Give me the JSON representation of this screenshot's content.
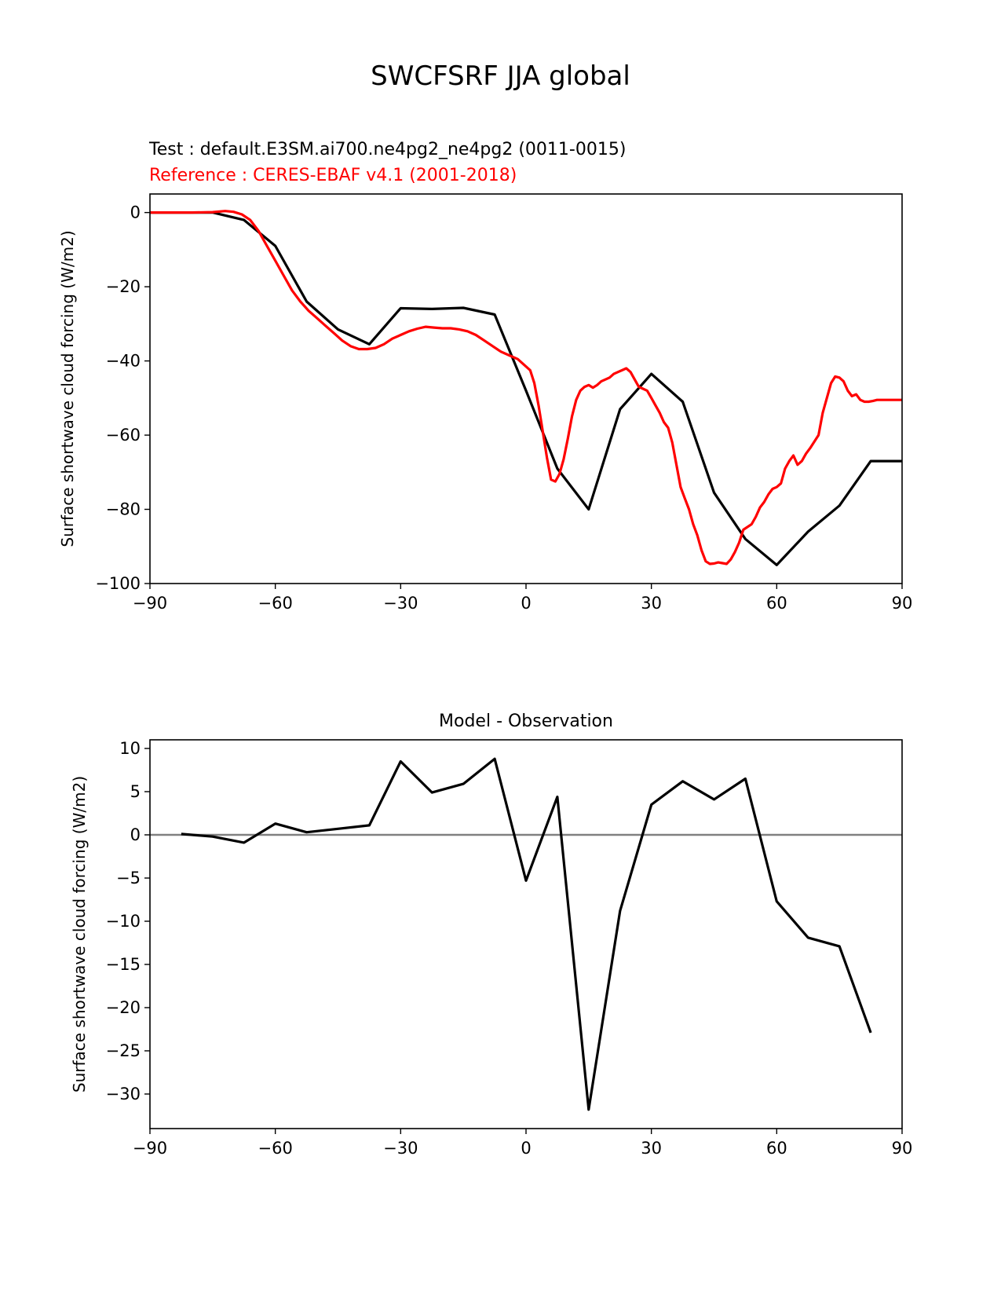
{
  "figure": {
    "title": "SWCFSRF JJA global"
  },
  "chart_data": [
    {
      "type": "line",
      "test_label": "Test : default.E3SM.ai700.ne4pg2_ne4pg2 (0011-0015)",
      "reference_label": "Reference : CERES-EBAF v4.1 (2001-2018)",
      "xlabel": "",
      "ylabel": "Surface shortwave cloud forcing (W/m2)",
      "xlim": [
        -90,
        90
      ],
      "ylim": [
        -100,
        5
      ],
      "xticks": [
        -90,
        -60,
        -30,
        0,
        30,
        60,
        90
      ],
      "yticks": [
        0,
        -20,
        -40,
        -60,
        -80,
        -100
      ],
      "xtick_labels": [
        "−90",
        "−60",
        "−30",
        "0",
        "30",
        "60",
        "90"
      ],
      "ytick_labels": [
        "0",
        "−20",
        "−40",
        "−60",
        "−80",
        "−100"
      ],
      "grid": false,
      "series": [
        {
          "key": "test",
          "color": "#000000",
          "x": [
            -90,
            -82.5,
            -75,
            -67.5,
            -60,
            -52.5,
            -45,
            -37.5,
            -30,
            -22.5,
            -15,
            -7.5,
            0,
            7.5,
            15,
            22.5,
            30,
            37.5,
            45,
            52.5,
            60,
            67.5,
            75,
            82.5,
            90
          ],
          "y": [
            0,
            0,
            0,
            -2,
            -9,
            -24,
            -31.5,
            -35.5,
            -25.8,
            -26,
            -25.7,
            -27.5,
            -48,
            -69,
            -80,
            -53,
            -43.5,
            -51,
            -75.5,
            -88,
            -95,
            -86,
            -79,
            -67,
            -67
          ]
        },
        {
          "key": "reference",
          "color": "#ff0000",
          "x": [
            -90,
            -80,
            -75,
            -72,
            -70,
            -68,
            -66,
            -64,
            -62,
            -60,
            -58,
            -56,
            -54,
            -52,
            -50,
            -48,
            -46,
            -44,
            -42,
            -40,
            -38,
            -36,
            -34,
            -32,
            -30,
            -28,
            -26,
            -24,
            -22,
            -20,
            -18,
            -16,
            -14,
            -12,
            -10,
            -8,
            -6,
            -4,
            -2,
            0,
            1,
            2,
            3,
            4,
            5,
            6,
            7,
            8,
            9,
            10,
            11,
            12,
            13,
            14,
            15,
            16,
            17,
            18,
            19,
            20,
            21,
            22,
            23,
            24,
            25,
            26,
            27,
            28,
            29,
            30,
            31,
            32,
            33,
            34,
            35,
            36,
            37,
            38,
            39,
            40,
            41,
            42,
            43,
            44,
            45,
            46,
            47,
            48,
            49,
            50,
            51,
            52,
            54,
            55,
            56,
            57,
            58,
            59,
            60,
            61,
            62,
            63,
            64,
            65,
            66,
            67,
            68,
            70,
            71,
            72,
            73,
            74,
            75,
            76,
            77,
            78,
            79,
            80,
            81,
            82,
            83,
            84,
            85,
            86,
            87,
            88,
            89,
            90
          ],
          "y": [
            0,
            0,
            0.1,
            0.4,
            0.2,
            -0.5,
            -2,
            -5,
            -9,
            -13,
            -17,
            -21,
            -24,
            -26.5,
            -28.5,
            -30.5,
            -32.5,
            -34.5,
            -36,
            -36.8,
            -36.8,
            -36.5,
            -35.5,
            -34,
            -33,
            -32,
            -31.3,
            -30.8,
            -31,
            -31.2,
            -31.2,
            -31.5,
            -32,
            -33,
            -34.5,
            -36,
            -37.5,
            -38.5,
            -39.5,
            -41.5,
            -42.5,
            -46,
            -52,
            -59,
            -66,
            -72,
            -72.5,
            -70.5,
            -66.5,
            -61,
            -55,
            -50.5,
            -48,
            -47,
            -46.5,
            -47.2,
            -46.5,
            -45.5,
            -45,
            -44.5,
            -43.5,
            -43,
            -42.5,
            -42,
            -43,
            -45,
            -47,
            -47.5,
            -48,
            -50,
            -52,
            -54,
            -56.5,
            -58,
            -62,
            -68,
            -74,
            -77,
            -80,
            -84,
            -87,
            -91,
            -94,
            -94.7,
            -94.6,
            -94.3,
            -94.5,
            -94.7,
            -93.5,
            -91.5,
            -89,
            -85.5,
            -84,
            -82,
            -79.5,
            -78,
            -76,
            -74.5,
            -74,
            -73,
            -69,
            -67,
            -65.5,
            -68,
            -67,
            -65,
            -63.5,
            -60,
            -54,
            -50,
            -46,
            -44.2,
            -44.5,
            -45.5,
            -48,
            -49.5,
            -49,
            -50.5,
            -51,
            -51,
            -50.8,
            -50.5,
            -50.5,
            -50.5,
            -50.5,
            -50.5,
            -50.5,
            -50.5
          ]
        }
      ]
    },
    {
      "type": "line",
      "title": "Model - Observation",
      "xlabel": "",
      "ylabel": "Surface shortwave cloud forcing (W/m2)",
      "xlim": [
        -90,
        90
      ],
      "ylim": [
        -34,
        11
      ],
      "xticks": [
        -90,
        -60,
        -30,
        0,
        30,
        60,
        90
      ],
      "yticks": [
        10,
        5,
        0,
        -5,
        -10,
        -15,
        -20,
        -25,
        -30
      ],
      "xtick_labels": [
        "−90",
        "−60",
        "−30",
        "0",
        "30",
        "60",
        "90"
      ],
      "ytick_labels": [
        "10",
        "5",
        "0",
        "−5",
        "−10",
        "−15",
        "−20",
        "−25",
        "−30"
      ],
      "grid": false,
      "zero_line_color": "#808080",
      "series": [
        {
          "key": "diff",
          "color": "#000000",
          "x": [
            -82.5,
            -75,
            -67.5,
            -60,
            -52.5,
            -45,
            -37.5,
            -30,
            -22.5,
            -15,
            -7.5,
            0,
            7.5,
            15,
            22.5,
            30,
            37.5,
            45,
            52.5,
            60,
            67.5,
            75,
            82.5
          ],
          "y": [
            0.1,
            -0.2,
            -0.9,
            1.3,
            0.3,
            0.7,
            1.1,
            8.5,
            4.9,
            5.9,
            8.8,
            -5.3,
            4.4,
            -31.8,
            -8.8,
            3.5,
            6.2,
            4.1,
            6.5,
            -7.7,
            -11.9,
            -12.9,
            -22.9
          ]
        }
      ]
    }
  ]
}
